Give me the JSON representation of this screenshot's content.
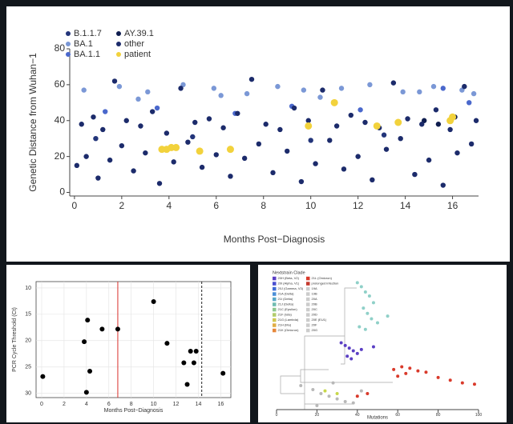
{
  "chart_data": [
    {
      "type": "scatter",
      "ylabel": "Genetic Distance from Wuhan−1",
      "xlabel": "Months Post−Diagnosis",
      "xlim": [
        -0.2,
        17.1
      ],
      "ylim": [
        -2,
        80
      ],
      "xticks": [
        0,
        2,
        4,
        6,
        8,
        10,
        12,
        14,
        16
      ],
      "yticks": [
        0,
        20,
        40,
        60,
        80
      ],
      "grid": false,
      "series": [
        {
          "name": "B.1.1.7",
          "color": "#23357a",
          "x": [
            0.9,
            5.0,
            10.0,
            13.1
          ],
          "y": [
            30,
            31,
            29,
            32
          ]
        },
        {
          "name": "BA.1",
          "color": "#7b98d6",
          "x": [
            0.4,
            1.9,
            3.1,
            4.6,
            5.9,
            7.3,
            8.6,
            9.7,
            11.3,
            12.5,
            13.9,
            15.2,
            16.4,
            16.9,
            2.7,
            6.2,
            10.4,
            14.6
          ],
          "y": [
            57,
            59,
            56,
            60,
            58,
            55,
            59,
            57,
            58,
            60,
            56,
            59,
            57,
            55,
            52,
            54,
            53,
            56
          ]
        },
        {
          "name": "BA.1.1",
          "color": "#4a68cc",
          "x": [
            1.3,
            3.5,
            6.8,
            9.2,
            12.1,
            15.6,
            16.7
          ],
          "y": [
            45,
            47,
            44,
            48,
            46,
            58,
            50
          ]
        },
        {
          "name": "AY.39.1",
          "color": "#0f1d4f",
          "x": [
            14.8,
            15.4,
            16.1
          ],
          "y": [
            40,
            38,
            42
          ]
        },
        {
          "name": "other",
          "color": "#1c2b6b",
          "x": [
            0.1,
            0.3,
            0.5,
            0.8,
            1.0,
            1.2,
            1.5,
            1.7,
            2.0,
            2.2,
            2.5,
            2.8,
            3.0,
            3.3,
            3.6,
            3.9,
            4.2,
            4.5,
            4.8,
            5.1,
            5.4,
            5.7,
            6.0,
            6.3,
            6.6,
            6.9,
            7.2,
            7.5,
            7.8,
            8.1,
            8.4,
            8.7,
            9.0,
            9.3,
            9.6,
            9.9,
            10.2,
            10.5,
            10.8,
            11.1,
            11.4,
            11.7,
            12.0,
            12.3,
            12.6,
            12.9,
            13.2,
            13.5,
            13.8,
            14.1,
            14.4,
            14.7,
            15.0,
            15.3,
            15.6,
            15.9,
            16.2,
            16.5,
            16.8,
            17.0
          ],
          "y": [
            15,
            38,
            20,
            42,
            8,
            35,
            18,
            62,
            26,
            40,
            12,
            37,
            22,
            45,
            5,
            33,
            17,
            58,
            28,
            39,
            14,
            41,
            21,
            36,
            9,
            44,
            19,
            63,
            27,
            38,
            11,
            35,
            23,
            47,
            6,
            40,
            16,
            57,
            29,
            37,
            13,
            43,
            20,
            39,
            7,
            36,
            24,
            61,
            30,
            41,
            10,
            38,
            18,
            46,
            4,
            35,
            22,
            59,
            27,
            40
          ]
        },
        {
          "name": "patient",
          "color": "#f2d23c",
          "x": [
            3.7,
            3.9,
            4.1,
            4.3,
            5.3,
            6.6,
            9.9,
            11.0,
            12.8,
            13.7,
            15.9,
            16.0
          ],
          "y": [
            24,
            24,
            25,
            25,
            23,
            24,
            37,
            50,
            37,
            39,
            40,
            42
          ]
        }
      ]
    },
    {
      "type": "scatter",
      "ylabel": "PCR Cycle Threshold (Ct)",
      "xlabel": "Months Post−Diagnosis",
      "xlim": [
        -0.5,
        16.9
      ],
      "ylim": [
        30.8,
        8.8
      ],
      "xticks": [
        0,
        2,
        4,
        6,
        8,
        10,
        12,
        14,
        16
      ],
      "yticks": [
        10,
        15,
        20,
        25,
        30
      ],
      "grid": true,
      "reference_lines": [
        {
          "x": 6.8,
          "color": "#d9302a",
          "style": "solid"
        },
        {
          "x": 14.3,
          "color": "#222222",
          "style": "dashed"
        }
      ],
      "series": [
        {
          "color": "#000000",
          "x": [
            0.1,
            3.8,
            4.1,
            4.3,
            4.0,
            5.4,
            6.8,
            10.0,
            11.2,
            12.7,
            13.0,
            13.3,
            13.6,
            13.8,
            16.2
          ],
          "y": [
            26.8,
            20.2,
            16.1,
            25.8,
            29.8,
            17.8,
            17.8,
            12.6,
            20.5,
            24.2,
            28.3,
            22.0,
            24.2,
            22.0,
            26.2
          ]
        }
      ]
    },
    {
      "type": "tree",
      "legend_title": "Nextstrain Clade",
      "xlabel": "Mutations",
      "xlim": [
        0,
        100
      ],
      "ylim": [
        0,
        100
      ],
      "xticks": [
        0,
        20,
        40,
        60,
        80,
        100
      ],
      "clades": [
        {
          "name": "20H (Beta, V2)",
          "color": "#5b3fc4"
        },
        {
          "name": "20I (Alpha, V1)",
          "color": "#4a4fd0"
        },
        {
          "name": "20J (Gamma, V3)",
          "color": "#3f6bd6"
        },
        {
          "name": "21A (Delta)",
          "color": "#4b8fd8"
        },
        {
          "name": "21I (Delta)",
          "color": "#5aa8c8"
        },
        {
          "name": "21J (Delta)",
          "color": "#70bcb0"
        },
        {
          "name": "21C (Epsilon)",
          "color": "#8fc790"
        },
        {
          "name": "21F (Iota)",
          "color": "#b2cc6c"
        },
        {
          "name": "21G (Lambda)",
          "color": "#d0c752"
        },
        {
          "name": "21H (Mu)",
          "color": "#e0ad44"
        },
        {
          "name": "21K (Omicron)",
          "color": "#e6873a"
        },
        {
          "name": "21L (Omicron)",
          "color": "#d93a2b"
        },
        {
          "name": "prolonged infection",
          "color": "#c43a2e"
        },
        {
          "name": "19A",
          "color": "#cccccc"
        },
        {
          "name": "19B",
          "color": "#cccccc"
        },
        {
          "name": "20A",
          "color": "#cccccc"
        },
        {
          "name": "20B",
          "color": "#cccccc"
        },
        {
          "name": "20C",
          "color": "#cccccc"
        },
        {
          "name": "20D",
          "color": "#cccccc"
        },
        {
          "name": "20E (EU1)",
          "color": "#cccccc"
        },
        {
          "name": "20F",
          "color": "#cccccc"
        },
        {
          "name": "20G",
          "color": "#cccccc"
        }
      ],
      "series": [
        {
          "color": "#8fd0c8",
          "x": [
            40,
            42,
            44,
            46,
            48,
            43,
            45,
            47,
            50,
            55,
            41,
            44
          ],
          "y": [
            95,
            92,
            88,
            85,
            80,
            76,
            72,
            68,
            65,
            70,
            62,
            60
          ]
        },
        {
          "color": "#5b3fc4",
          "x": [
            32,
            34,
            36,
            38,
            40,
            35,
            37,
            42,
            48
          ],
          "y": [
            50,
            48,
            46,
            44,
            42,
            40,
            38,
            45,
            47
          ]
        },
        {
          "color": "#d93a2b",
          "x": [
            58,
            62,
            66,
            70,
            74,
            80,
            86,
            92,
            98,
            60,
            64,
            45,
            40
          ],
          "y": [
            30,
            32,
            31,
            29,
            28,
            24,
            22,
            20,
            19,
            25,
            27,
            12,
            10
          ]
        },
        {
          "color": "#b8b8b8",
          "x": [
            12,
            18,
            22,
            26,
            30,
            34,
            38,
            42,
            28,
            20
          ],
          "y": [
            18,
            15,
            12,
            10,
            8,
            6,
            5,
            14,
            20,
            3
          ]
        },
        {
          "color": "#c8d84a",
          "x": [
            24,
            30
          ],
          "y": [
            14,
            12
          ]
        }
      ]
    }
  ]
}
